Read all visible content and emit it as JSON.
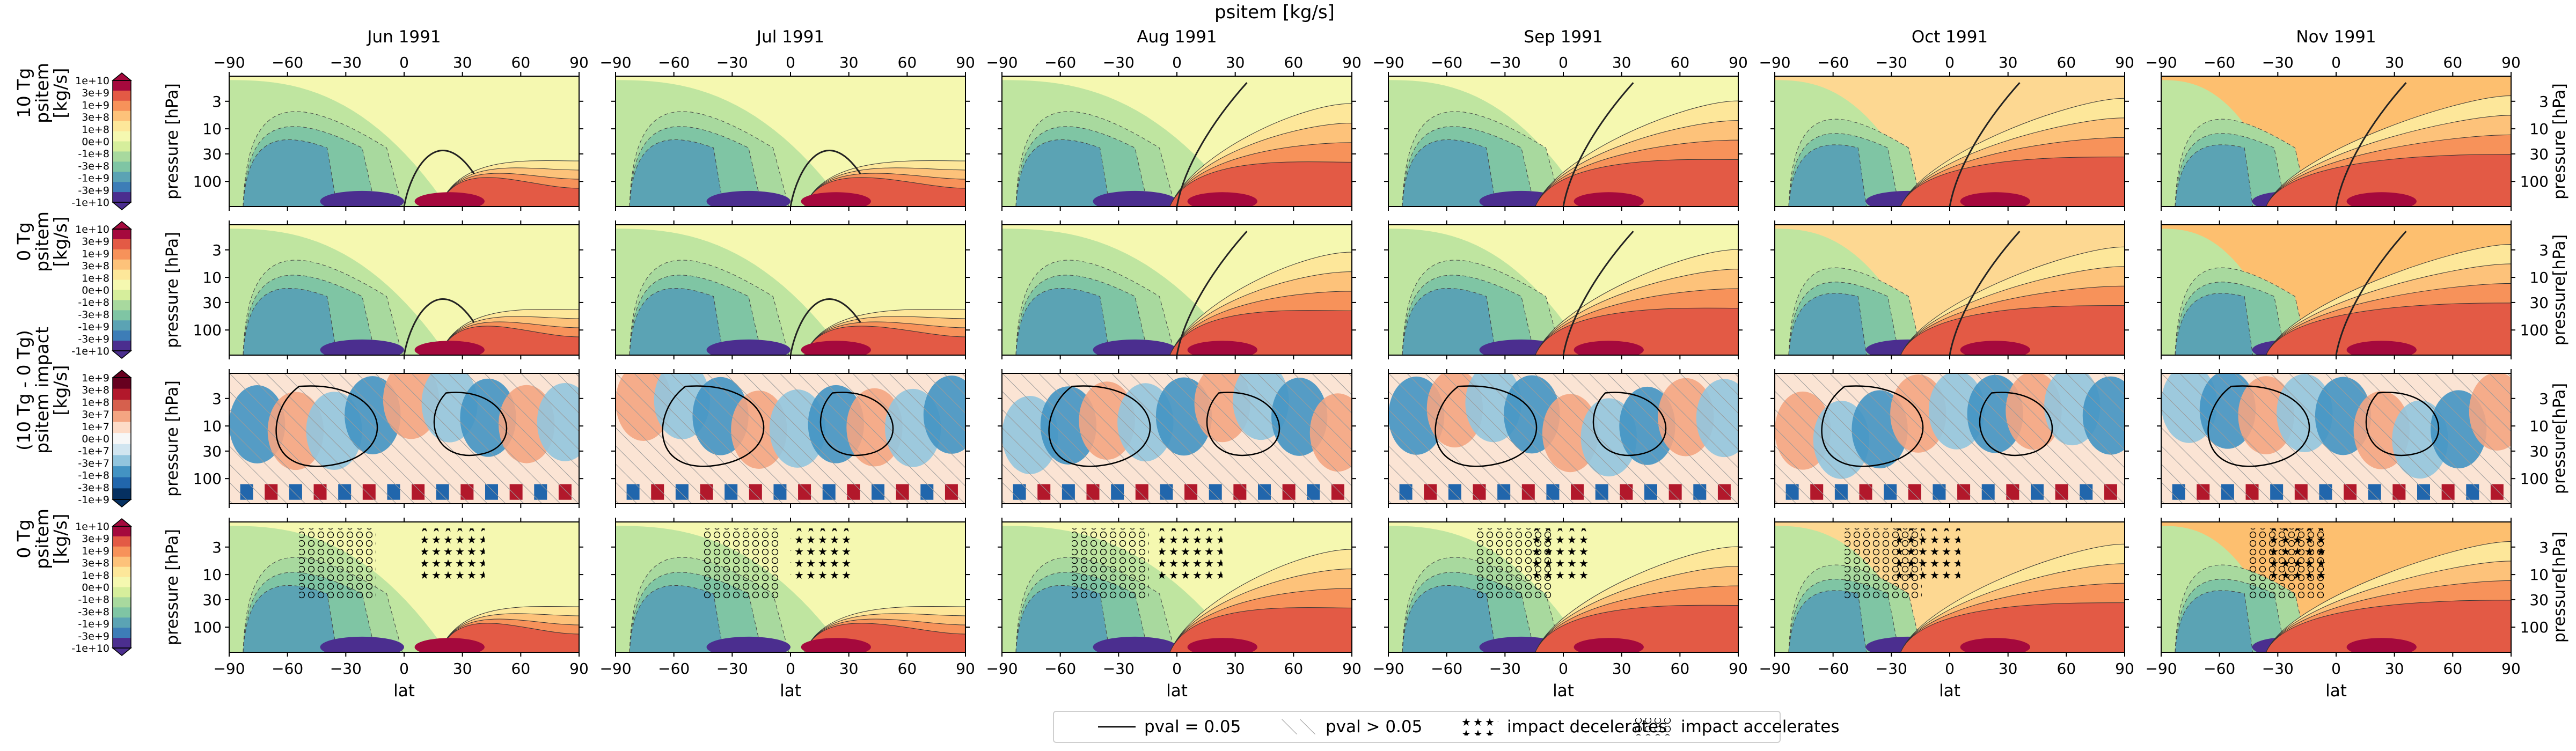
{
  "chart_data": {
    "type": "heatmap",
    "title": "psitem [kg/s]",
    "columns": [
      "Jun 1991",
      "Jul 1991",
      "Aug 1991",
      "Sep 1991",
      "Oct 1991",
      "Nov 1991"
    ],
    "rows": [
      {
        "label": [
          "10 Tg",
          "psitem",
          "[kg/s]"
        ],
        "kind": "base",
        "scenario": "10 Tg",
        "colorbar_ticks": [
          "1e+10",
          "3e+9",
          "1e+9",
          "3e+8",
          "1e+8",
          "0e+0",
          "-1e+8",
          "-3e+8",
          "-1e+9",
          "-3e+9",
          "-1e+10"
        ],
        "overlay": "contours"
      },
      {
        "label": [
          "0 Tg",
          "psitem",
          "[kg/s]"
        ],
        "kind": "base",
        "scenario": "0 Tg",
        "colorbar_ticks": [
          "1e+10",
          "3e+9",
          "1e+9",
          "3e+8",
          "1e+8",
          "0e+0",
          "-1e+8",
          "-3e+8",
          "-1e+9",
          "-3e+9",
          "-1e+10"
        ],
        "overlay": "contours"
      },
      {
        "label": [
          "(10 Tg - 0 Tg)",
          "psitem impact",
          "[kg/s]"
        ],
        "kind": "diff",
        "colorbar_ticks": [
          "1e+9",
          "3e+8",
          "1e+8",
          "3e+7",
          "1e+7",
          "0e+0",
          "-1e+7",
          "-3e+7",
          "-1e+8",
          "-3e+8",
          "-1e+9"
        ],
        "overlay": "significance"
      },
      {
        "label": [
          "0 Tg",
          "psitem",
          "[kg/s]"
        ],
        "kind": "base",
        "scenario": "0 Tg",
        "colorbar_ticks": [
          "1e+10",
          "3e+9",
          "1e+9",
          "3e+8",
          "1e+8",
          "0e+0",
          "-1e+8",
          "-3e+8",
          "-1e+9",
          "-3e+9",
          "-1e+10"
        ],
        "overlay": "stippling"
      }
    ],
    "xlabel": "lat",
    "ylabel_left": "pressure [hPa]",
    "ylabel_right": "pressure[hPa]",
    "xticks": [
      -90,
      -60,
      -30,
      0,
      30,
      60,
      90
    ],
    "yticks": [
      3,
      10,
      30,
      100
    ],
    "ylim_hpa": [
      1,
      300
    ],
    "y_scale": "log",
    "y_inverted": true,
    "diverging_colormap": "RdYlBu / Spectral",
    "legend_position": "bottom-center",
    "legend": [
      {
        "symbol": "solid-line",
        "label": "pval = 0.05"
      },
      {
        "symbol": "hatch",
        "label": "pval > 0.05"
      },
      {
        "symbol": "stars",
        "label": "impact decelerates"
      },
      {
        "symbol": "circles",
        "label": "impact accelerates"
      }
    ]
  }
}
